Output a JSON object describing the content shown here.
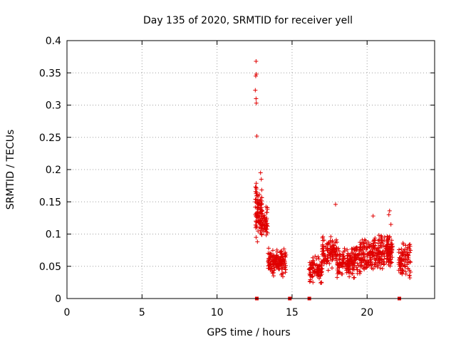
{
  "chart_data": {
    "type": "scatter",
    "title": "Day 135 of 2020, SRMTID for receiver yell",
    "xlabel": "GPS time / hours",
    "ylabel": "SRMTID / TECUs",
    "xlim": [
      0,
      24.5
    ],
    "ylim": [
      0,
      0.4
    ],
    "x_ticks": [
      0,
      5,
      10,
      15,
      20
    ],
    "x_tick_labels": [
      "0",
      "5",
      "10",
      "15",
      "20"
    ],
    "y_ticks": [
      0,
      0.05,
      0.1,
      0.15,
      0.2,
      0.25,
      0.3,
      0.35,
      0.4
    ],
    "y_tick_labels": [
      "0",
      "0.05",
      "0.1",
      "0.15",
      "0.2",
      "0.25",
      "0.3",
      "0.35",
      "0.4"
    ],
    "grid": true,
    "marker": "+",
    "color": "#e00000",
    "outliers": [
      {
        "x": 12.6,
        "y": 0.368
      },
      {
        "x": 12.62,
        "y": 0.348
      },
      {
        "x": 12.58,
        "y": 0.345
      },
      {
        "x": 12.55,
        "y": 0.323
      },
      {
        "x": 12.6,
        "y": 0.31
      },
      {
        "x": 12.62,
        "y": 0.303
      },
      {
        "x": 12.65,
        "y": 0.252
      },
      {
        "x": 12.9,
        "y": 0.195
      },
      {
        "x": 12.95,
        "y": 0.185
      },
      {
        "x": 17.9,
        "y": 0.146
      },
      {
        "x": 21.5,
        "y": 0.136
      },
      {
        "x": 21.45,
        "y": 0.13
      },
      {
        "x": 20.4,
        "y": 0.128
      }
    ],
    "clusters": [
      {
        "x0": 12.55,
        "x1": 13.0,
        "ymin": 0.08,
        "ymax": 0.19,
        "n": 90
      },
      {
        "x0": 12.9,
        "x1": 13.4,
        "ymin": 0.085,
        "ymax": 0.145,
        "n": 60
      },
      {
        "x0": 13.4,
        "x1": 14.6,
        "ymin": 0.03,
        "ymax": 0.085,
        "n": 160
      },
      {
        "x0": 16.1,
        "x1": 17.0,
        "ymin": 0.02,
        "ymax": 0.07,
        "n": 90
      },
      {
        "x0": 17.0,
        "x1": 18.0,
        "ymin": 0.04,
        "ymax": 0.1,
        "n": 110
      },
      {
        "x0": 18.0,
        "x1": 19.2,
        "ymin": 0.025,
        "ymax": 0.085,
        "n": 140
      },
      {
        "x0": 19.2,
        "x1": 20.3,
        "ymin": 0.03,
        "ymax": 0.1,
        "n": 130
      },
      {
        "x0": 20.3,
        "x1": 21.6,
        "ymin": 0.035,
        "ymax": 0.11,
        "n": 160
      },
      {
        "x0": 21.3,
        "x1": 21.7,
        "ymin": 0.04,
        "ymax": 0.12,
        "n": 40
      },
      {
        "x0": 22.1,
        "x1": 22.9,
        "ymin": 0.02,
        "ymax": 0.095,
        "n": 90
      }
    ],
    "zero_markers_x": [
      12.65,
      14.85,
      16.15,
      22.15
    ]
  }
}
